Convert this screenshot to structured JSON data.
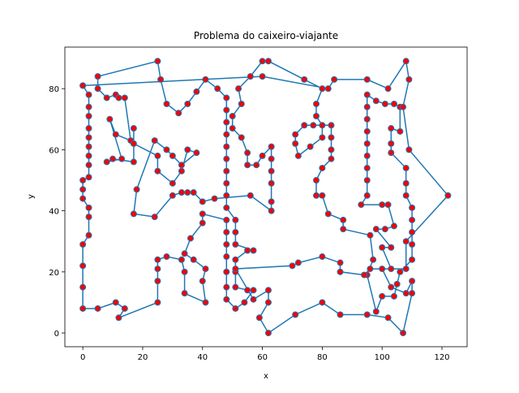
{
  "chart_data": {
    "type": "line",
    "title": "Problema do caixeiro-viajante",
    "xlabel": "x",
    "ylabel": "y",
    "xlim": [
      -6,
      128.4
    ],
    "ylim": [
      -4.5,
      93.6
    ],
    "xticks": [
      0,
      20,
      40,
      60,
      80,
      100,
      120
    ],
    "yticks": [
      0,
      20,
      40,
      60,
      80
    ],
    "series": [
      {
        "color": "#1f77b4",
        "marker_color": "red",
        "x": [
          0,
          2,
          2,
          2,
          2,
          2,
          2,
          2,
          2,
          2,
          0,
          0,
          0,
          2,
          2,
          2,
          0,
          0,
          0,
          0,
          5,
          11,
          14,
          12,
          25,
          25,
          25,
          25,
          28,
          33,
          34,
          34,
          41,
          40,
          41,
          37,
          34,
          36,
          40,
          40,
          48,
          48,
          48,
          48,
          48,
          48,
          48,
          51,
          54,
          57,
          55,
          51,
          51,
          51,
          55,
          57,
          51,
          51,
          51,
          48,
          48,
          48,
          48,
          48,
          48,
          48,
          48,
          48,
          48,
          45,
          41,
          38,
          35,
          32,
          28,
          26,
          25,
          5,
          5,
          8,
          11,
          12,
          14,
          16,
          11,
          9,
          13,
          8,
          10,
          17,
          17,
          17,
          25,
          25,
          30,
          33,
          35,
          38,
          33,
          30,
          28,
          24,
          18,
          17,
          24,
          30,
          33,
          35,
          37,
          40,
          44,
          56,
          63,
          63,
          63,
          63,
          63,
          63,
          60,
          58,
          55,
          55,
          53,
          50,
          50,
          53,
          52,
          56,
          60,
          62,
          74,
          80,
          78,
          78,
          80,
          80,
          76,
          72,
          71,
          71,
          74,
          77,
          83,
          83,
          83,
          83,
          80,
          78,
          78,
          80,
          82,
          87,
          87,
          96,
          97,
          95,
          98,
          100,
          104,
          105,
          106,
          110,
          110,
          110,
          110,
          110,
          108,
          108,
          108,
          103,
          103,
          103,
          106,
          106,
          104,
          101,
          98,
          95,
          95,
          95,
          95,
          95,
          95,
          95,
          95,
          95,
          93,
          100,
          102,
          104,
          101,
          98,
          103,
          100,
          103,
          100,
          103,
          108,
          110,
          110,
          107,
          102,
          95,
          86,
          80,
          71,
          62,
          59,
          62,
          62,
          57,
          51,
          70,
          72,
          80,
          86,
          86,
          94,
          96,
          108,
          108,
          122,
          109,
          107,
          109,
          108,
          102,
          95,
          84,
          82,
          60,
          0
        ],
        "y": [
          81,
          78,
          74,
          71,
          67,
          64,
          61,
          58,
          55,
          51,
          50,
          47,
          44,
          41,
          38,
          32,
          29,
          22,
          15,
          8,
          8,
          10,
          8,
          5,
          10,
          17,
          21,
          24,
          25,
          24,
          20,
          13,
          10,
          17,
          21,
          24,
          26,
          31,
          36,
          39,
          37,
          33,
          29,
          25,
          20,
          15,
          11,
          8,
          10,
          14,
          14,
          15,
          20,
          24,
          27,
          27,
          29,
          33,
          37,
          41,
          45,
          49,
          53,
          57,
          61,
          65,
          69,
          73,
          77,
          80,
          83,
          79,
          75,
          72,
          75,
          83,
          89,
          84,
          80,
          77,
          78,
          77,
          77,
          63,
          65,
          70,
          57,
          56,
          57,
          56,
          67,
          62,
          58,
          53,
          49,
          53,
          60,
          59,
          55,
          58,
          60,
          63,
          47,
          39,
          38,
          45,
          46,
          46,
          46,
          43,
          44,
          45,
          40,
          43,
          49,
          53,
          57,
          61,
          58,
          55,
          55,
          59,
          64,
          67,
          71,
          75,
          80,
          84,
          89,
          89,
          83,
          80,
          75,
          71,
          68,
          64,
          61,
          58,
          62,
          65,
          68,
          68,
          68,
          64,
          60,
          57,
          54,
          50,
          45,
          45,
          39,
          37,
          34,
          32,
          24,
          19,
          7,
          12,
          12,
          16,
          20,
          24,
          29,
          33,
          37,
          41,
          45,
          49,
          54,
          59,
          62,
          67,
          66,
          74,
          75,
          75,
          76,
          78,
          74,
          70,
          66,
          62,
          58,
          54,
          50,
          45,
          42,
          42,
          42,
          35,
          34,
          34,
          28,
          28,
          21,
          21,
          15,
          13,
          17,
          13,
          0,
          5,
          6,
          6,
          10,
          6,
          0,
          5,
          10,
          14,
          11,
          21,
          22,
          23,
          25,
          23,
          20,
          19,
          21,
          21,
          30,
          45,
          60,
          74,
          83,
          89,
          80,
          83,
          83,
          80,
          84,
          81
        ]
      }
    ]
  }
}
